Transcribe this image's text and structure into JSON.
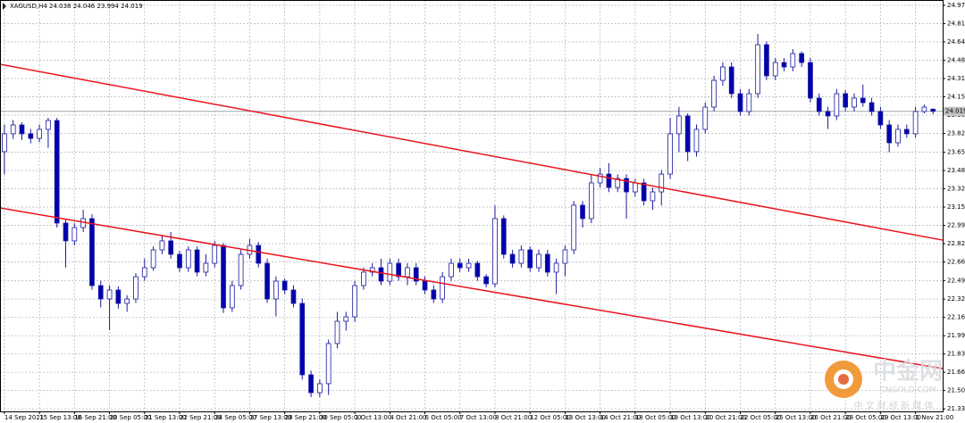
{
  "chart_data": {
    "type": "candlestick",
    "title": "XAGUSD,H4  24.038 24.046 23.994 24.019",
    "open": [
      23.655,
      23.816,
      23.896,
      23.816,
      23.775,
      23.856,
      23.936,
      23.011,
      22.85,
      22.97,
      23.051,
      22.447,
      22.326,
      22.407,
      22.286,
      22.326,
      22.527,
      22.608,
      22.769,
      22.85,
      22.729,
      22.608,
      22.769,
      22.568,
      22.648,
      22.809,
      22.246,
      22.447,
      22.729,
      22.809,
      22.648,
      22.326,
      22.487,
      22.407,
      22.286,
      21.642,
      21.481,
      21.562,
      21.924,
      22.125,
      22.165,
      22.447,
      22.568,
      22.608,
      22.487,
      22.648,
      22.527,
      22.608,
      22.487,
      22.407,
      22.326,
      22.527,
      22.648,
      22.608,
      22.648,
      22.527,
      22.463,
      23.051,
      22.729,
      22.648,
      22.769,
      22.608,
      22.729,
      22.568,
      22.648,
      22.769,
      23.172,
      23.051,
      23.373,
      23.453,
      23.332,
      23.413,
      23.292,
      23.373,
      23.212,
      23.292,
      23.453,
      23.816,
      23.977,
      23.655,
      23.856,
      24.057,
      24.298,
      24.419,
      24.178,
      24.017,
      24.178,
      24.62,
      24.339,
      24.459,
      24.419,
      24.54,
      24.459,
      24.138,
      24.017,
      23.977,
      24.178,
      24.057,
      24.138,
      24.097,
      24.017,
      23.896,
      23.735,
      23.856,
      23.816,
      24.017,
      24.038
    ],
    "high": [
      23.9,
      23.94,
      23.92,
      23.86,
      23.9,
      23.96,
      23.96,
      23.05,
      23.01,
      23.131,
      23.09,
      22.49,
      22.45,
      22.44,
      22.36,
      22.56,
      22.69,
      22.8,
      22.9,
      22.93,
      22.76,
      22.8,
      22.8,
      22.73,
      22.85,
      22.83,
      22.49,
      22.77,
      22.87,
      22.84,
      22.69,
      22.53,
      22.51,
      22.45,
      22.33,
      21.68,
      21.6,
      21.96,
      22.21,
      22.21,
      22.49,
      22.61,
      22.65,
      22.69,
      22.69,
      22.69,
      22.65,
      22.65,
      22.53,
      22.45,
      22.57,
      22.69,
      22.69,
      22.69,
      22.67,
      22.55,
      23.17,
      23.08,
      22.77,
      22.81,
      22.8,
      22.77,
      22.77,
      22.69,
      22.81,
      23.21,
      23.21,
      23.45,
      23.51,
      23.55,
      23.45,
      23.45,
      23.41,
      23.41,
      23.33,
      23.49,
      23.96,
      24.06,
      24.0,
      23.9,
      24.1,
      24.34,
      24.46,
      24.46,
      24.22,
      24.22,
      24.717,
      24.65,
      24.5,
      24.5,
      24.58,
      24.56,
      24.5,
      24.18,
      24.06,
      24.22,
      24.21,
      24.18,
      24.26,
      24.14,
      24.06,
      23.94,
      23.9,
      23.9,
      24.06,
      24.08,
      24.046
    ],
    "low": [
      23.45,
      23.77,
      23.76,
      23.73,
      23.74,
      23.69,
      22.97,
      22.61,
      22.81,
      22.93,
      22.41,
      22.25,
      22.045,
      22.24,
      22.21,
      22.29,
      22.49,
      22.58,
      22.73,
      22.69,
      22.57,
      22.57,
      22.53,
      22.53,
      22.61,
      22.2,
      22.21,
      22.41,
      22.69,
      22.61,
      22.29,
      22.17,
      22.37,
      22.25,
      21.6,
      21.441,
      21.44,
      21.46,
      21.88,
      22.04,
      22.12,
      22.41,
      22.53,
      22.45,
      22.45,
      22.49,
      22.45,
      22.45,
      22.37,
      22.29,
      22.29,
      22.49,
      22.57,
      22.57,
      22.49,
      22.43,
      22.43,
      22.69,
      22.61,
      22.61,
      22.57,
      22.57,
      22.53,
      22.37,
      22.53,
      22.73,
      22.97,
      23.01,
      23.33,
      23.29,
      23.29,
      23.05,
      23.25,
      23.17,
      23.13,
      23.17,
      23.41,
      23.65,
      23.57,
      23.61,
      23.82,
      24.02,
      24.25,
      24.14,
      23.98,
      23.98,
      24.14,
      24.3,
      24.3,
      24.38,
      24.38,
      24.42,
      24.1,
      23.98,
      23.86,
      23.94,
      24.02,
      24.02,
      24.06,
      23.98,
      23.86,
      23.65,
      23.7,
      23.78,
      23.78,
      24.0,
      23.994
    ],
    "close": [
      23.816,
      23.896,
      23.816,
      23.775,
      23.856,
      23.936,
      23.011,
      22.85,
      22.97,
      23.051,
      22.447,
      22.326,
      22.407,
      22.286,
      22.326,
      22.527,
      22.608,
      22.769,
      22.85,
      22.729,
      22.608,
      22.769,
      22.568,
      22.648,
      22.809,
      22.246,
      22.447,
      22.729,
      22.809,
      22.648,
      22.326,
      22.487,
      22.407,
      22.286,
      21.642,
      21.481,
      21.562,
      21.924,
      22.125,
      22.165,
      22.447,
      22.568,
      22.608,
      22.487,
      22.648,
      22.527,
      22.608,
      22.487,
      22.407,
      22.326,
      22.527,
      22.648,
      22.608,
      22.648,
      22.527,
      22.463,
      23.051,
      22.729,
      22.648,
      22.769,
      22.608,
      22.729,
      22.568,
      22.648,
      22.769,
      23.172,
      23.051,
      23.373,
      23.453,
      23.332,
      23.413,
      23.292,
      23.373,
      23.212,
      23.292,
      23.453,
      23.816,
      23.977,
      23.655,
      23.856,
      24.057,
      24.298,
      24.419,
      24.178,
      24.017,
      24.178,
      24.62,
      24.339,
      24.459,
      24.419,
      24.54,
      24.459,
      24.138,
      24.017,
      23.977,
      24.178,
      24.057,
      24.138,
      24.097,
      24.017,
      23.896,
      23.735,
      23.856,
      23.816,
      24.017,
      24.057,
      24.019
    ],
    "bull_color": "#ffffff",
    "bear_color": "#0000b0",
    "wick_color": "#1a1aa0",
    "xlim": [
      -0.5,
      107.1
    ],
    "ylim": [
      21.312,
      25.023
    ],
    "xticks": [
      {
        "value": 0,
        "label": "14 Sep 2021"
      },
      {
        "value": 4,
        "label": "15 Sep 13:00"
      },
      {
        "value": 8,
        "label": "16 Sep 21:00"
      },
      {
        "value": 12,
        "label": "20 Sep 05:00"
      },
      {
        "value": 16,
        "label": "21 Sep 13:00"
      },
      {
        "value": 20,
        "label": "22 Sep 21:00"
      },
      {
        "value": 24,
        "label": "24 Sep 05:00"
      },
      {
        "value": 28,
        "label": "27 Sep 13:00"
      },
      {
        "value": 32,
        "label": "28 Sep 21:00"
      },
      {
        "value": 36,
        "label": "30 Sep 05:00"
      },
      {
        "value": 40,
        "label": "1 Oct 13:00"
      },
      {
        "value": 44,
        "label": "4 Oct 21:00"
      },
      {
        "value": 48,
        "label": "6 Oct 05:00"
      },
      {
        "value": 52,
        "label": "7 Oct 13:00"
      },
      {
        "value": 56,
        "label": "8 Oct 21:00"
      },
      {
        "value": 60,
        "label": "12 Oct 05:00"
      },
      {
        "value": 64,
        "label": "13 Oct 13:00"
      },
      {
        "value": 68,
        "label": "14 Oct 21:00"
      },
      {
        "value": 72,
        "label": "18 Oct 05:00"
      },
      {
        "value": 76,
        "label": "19 Oct 13:00"
      },
      {
        "value": 80,
        "label": "20 Oct 21:00"
      },
      {
        "value": 84,
        "label": "22 Oct 05:00"
      },
      {
        "value": 88,
        "label": "25 Oct 13:00"
      },
      {
        "value": 92,
        "label": "26 Oct 21:00"
      },
      {
        "value": 96,
        "label": "28 Oct 05:00"
      },
      {
        "value": 100,
        "label": "29 Oct 13:00"
      },
      {
        "value": 104,
        "label": "1 Nov 21:00"
      }
    ],
    "yticks": [
      24.975,
      {
        "value": 24.81,
        "label": "24.810"
      },
      24.645,
      {
        "value": 24.48,
        "label": "24.480"
      },
      24.315,
      {
        "value": 24.15,
        "label": "24.150"
      },
      23.985,
      {
        "value": 23.82,
        "label": "23.820"
      },
      {
        "value": 23.65,
        "label": "23.650"
      },
      23.485,
      {
        "value": 23.32,
        "label": "23.320"
      },
      23.155,
      {
        "value": 22.99,
        "label": "22.990"
      },
      22.825,
      {
        "value": 22.66,
        "label": "22.660"
      },
      {
        "value": 22.49,
        "label": "22.490"
      },
      22.325,
      {
        "value": 22.16,
        "label": "22.160"
      },
      21.995,
      {
        "value": 21.83,
        "label": "21.830"
      },
      21.665,
      {
        "value": 21.5,
        "label": "21.500"
      },
      21.335
    ],
    "grid": true,
    "last_price": 24.019,
    "trendlines": [
      {
        "color": "#e8141c",
        "x": [
          -0.5,
          107.1
        ],
        "y": [
          24.444,
          22.857
        ]
      },
      {
        "color": "#e8141c",
        "x": [
          -0.5,
          107.1
        ],
        "y": [
          23.147,
          21.698
        ]
      }
    ]
  },
  "watermark": {
    "brand": "中金网",
    "site": "CNGOLD.COM",
    "slogan": "中 文 财 经 新 媒 体"
  }
}
